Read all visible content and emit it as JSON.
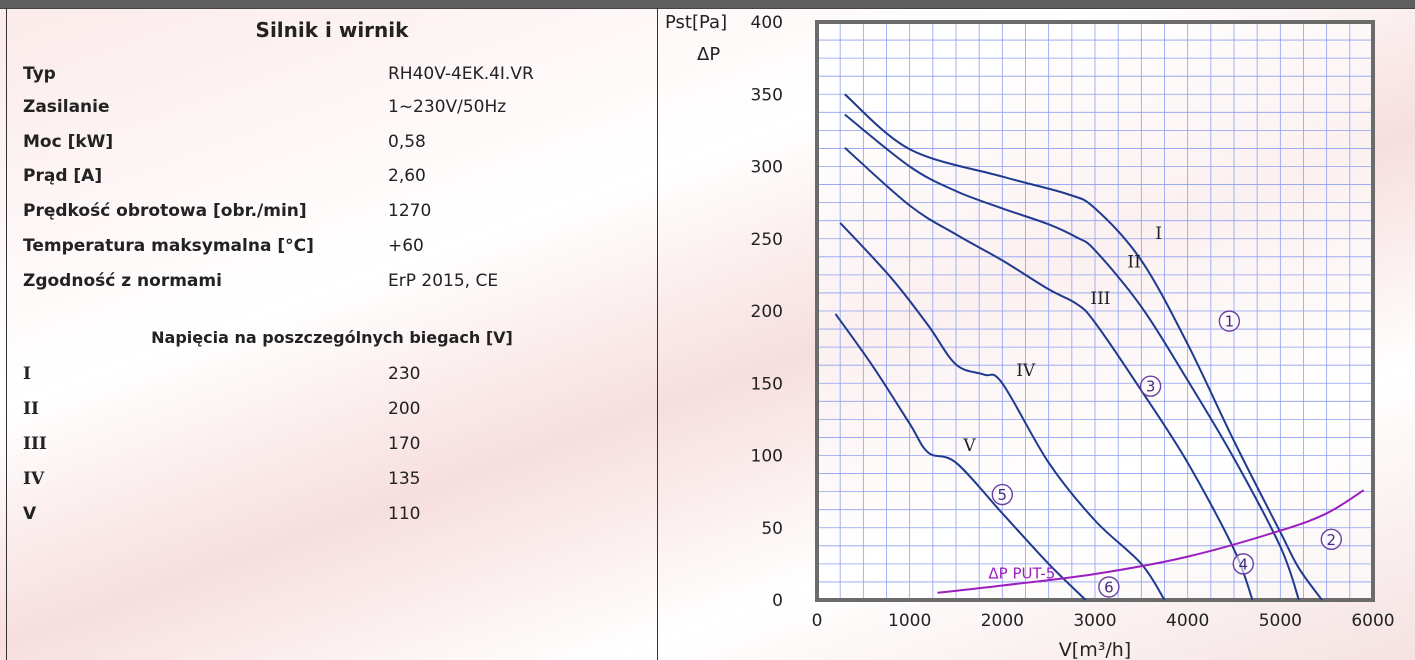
{
  "specs": {
    "title": "Silnik i wirnik",
    "rows": [
      {
        "label": "Typ",
        "value": "RH40V-4EK.4I.VR"
      },
      {
        "label": "Zasilanie",
        "value": "1~230V/50Hz"
      },
      {
        "label": "Moc [kW]",
        "value": "0,58"
      },
      {
        "label": "Prąd [A]",
        "value": "2,60"
      },
      {
        "label": "Prędkość obrotowa [obr./min]",
        "value": "1270"
      },
      {
        "label": "Temperatura maksymalna [°C]",
        "value": "+60"
      },
      {
        "label": "Zgodność z normami",
        "value": "ErP 2015, CE"
      }
    ],
    "voltage_title": "Napięcia na poszczególnych biegach [V]",
    "voltages": [
      {
        "label": "I",
        "value": "230"
      },
      {
        "label": "II",
        "value": "200"
      },
      {
        "label": "III",
        "value": "170"
      },
      {
        "label": "IV",
        "value": "135"
      },
      {
        "label": "V",
        "value": "110"
      }
    ]
  },
  "chart_data": {
    "type": "line",
    "ylabel_line1": "Pst[Pa]",
    "ylabel_line2": "ΔP",
    "xlabel": "V[m³/h]",
    "xlim": [
      0,
      6000
    ],
    "ylim": [
      0,
      400
    ],
    "x_ticks": [
      "0",
      "1000",
      "2000",
      "3000",
      "4000",
      "5000",
      "6000"
    ],
    "y_ticks": [
      "0",
      "50",
      "100",
      "150",
      "200",
      "250",
      "300",
      "350",
      "400"
    ],
    "grid": true,
    "colors": {
      "fan": "#1f3a8f",
      "put": "#9b1fbf",
      "grid": "#8f9ff0"
    },
    "series": [
      {
        "name": "I",
        "x": [
          300,
          1000,
          2000,
          2700,
          3000,
          3500,
          4000,
          4500,
          5000,
          5200,
          5450
        ],
        "y": [
          350,
          312,
          293,
          281,
          271,
          235,
          177,
          110,
          47,
          22,
          0
        ]
      },
      {
        "name": "II",
        "x": [
          300,
          1000,
          1500,
          2000,
          2500,
          2800,
          3000,
          3500,
          4000,
          4500,
          5000,
          5200
        ],
        "y": [
          336,
          300,
          283,
          271,
          260,
          251,
          242,
          203,
          152,
          98,
          37,
          0
        ]
      },
      {
        "name": "III",
        "x": [
          300,
          1000,
          1500,
          2000,
          2500,
          2800,
          3000,
          3500,
          4000,
          4500,
          4700
        ],
        "y": [
          313,
          273,
          253,
          235,
          215,
          205,
          192,
          145,
          95,
          35,
          0
        ]
      },
      {
        "name": "IV",
        "x": [
          250,
          800,
          1200,
          1500,
          1800,
          2000,
          2500,
          3000,
          3500,
          3750
        ],
        "y": [
          261,
          223,
          190,
          163,
          156,
          150,
          95,
          55,
          25,
          0
        ]
      },
      {
        "name": "V",
        "x": [
          200,
          600,
          1000,
          1200,
          1500,
          2000,
          2500,
          2900
        ],
        "y": [
          198,
          162,
          122,
          102,
          95,
          60,
          25,
          0
        ]
      },
      {
        "name": "ΔP PUT-5",
        "x": [
          1300,
          2000,
          3000,
          4000,
          5000,
          5500,
          5900
        ],
        "y": [
          5,
          10,
          18,
          30,
          48,
          60,
          76
        ]
      }
    ],
    "curve_labels": [
      {
        "text": "I",
        "x": 3650,
        "y": 250
      },
      {
        "text": "II",
        "x": 3350,
        "y": 230
      },
      {
        "text": "III",
        "x": 2950,
        "y": 205
      },
      {
        "text": "IV",
        "x": 2150,
        "y": 155
      },
      {
        "text": "V",
        "x": 1580,
        "y": 103
      },
      {
        "text": "ΔP PUT-5",
        "x": 1850,
        "y": 15
      }
    ],
    "circle_markers": [
      {
        "text": "1",
        "x": 4450,
        "y": 193
      },
      {
        "text": "3",
        "x": 3600,
        "y": 148
      },
      {
        "text": "5",
        "x": 2000,
        "y": 73
      },
      {
        "text": "6",
        "x": 3150,
        "y": 9
      },
      {
        "text": "4",
        "x": 4600,
        "y": 25
      },
      {
        "text": "2",
        "x": 5550,
        "y": 42
      }
    ]
  }
}
